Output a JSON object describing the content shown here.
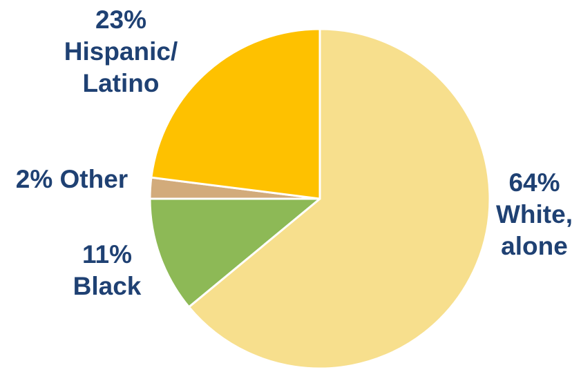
{
  "chart_data": {
    "type": "pie",
    "slices": [
      {
        "key": "white",
        "pct_label": "64%",
        "name_lines": [
          "White,",
          "alone"
        ],
        "value": 64,
        "color": "#f7df8d"
      },
      {
        "key": "black",
        "pct_label": "11%",
        "name_lines": [
          "Black"
        ],
        "value": 11,
        "color": "#8db956"
      },
      {
        "key": "other",
        "pct_label": "2%",
        "name_lines": [
          "Other"
        ],
        "value": 2,
        "color": "#d2ab7b"
      },
      {
        "key": "hispanic",
        "pct_label": "23%",
        "name_lines": [
          "Hispanic/",
          "Latino"
        ],
        "value": 23,
        "color": "#fec100"
      }
    ],
    "start": "12 o'clock",
    "direction": "clockwise",
    "label_color": "#1f4173",
    "edge_color": "#ffffff"
  }
}
